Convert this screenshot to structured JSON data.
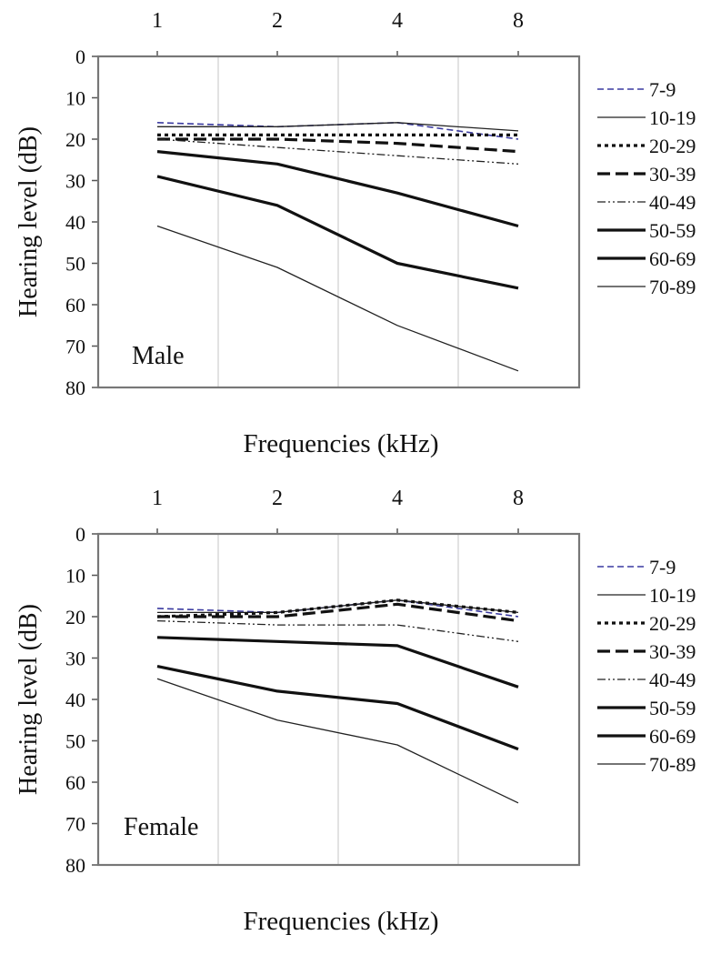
{
  "chart_data": [
    {
      "type": "line",
      "panel_label": "Male",
      "x_top_ticks": [
        "1",
        "2",
        "4",
        "8"
      ],
      "x": [
        1,
        2,
        4,
        8
      ],
      "xlabel": "Frequencies (kHz)",
      "ylabel": "Hearing level (dB)",
      "ylim": [
        0,
        80
      ],
      "y_inverted": true,
      "y_ticks": [
        "0",
        "10",
        "20",
        "30",
        "40",
        "50",
        "60",
        "70",
        "80"
      ],
      "grid": "vertical",
      "legend_position": "right",
      "series": [
        {
          "name": "7-9",
          "values": [
            16,
            17,
            16,
            20
          ],
          "color": "#3a3aa0",
          "style": "dashed-blue"
        },
        {
          "name": "10-19",
          "values": [
            17,
            17,
            16,
            18
          ],
          "color": "#222222",
          "style": "thin"
        },
        {
          "name": "20-29",
          "values": [
            19,
            19,
            19,
            19
          ],
          "color": "#111111",
          "style": "dotted"
        },
        {
          "name": "30-39",
          "values": [
            20,
            20,
            21,
            23
          ],
          "color": "#111111",
          "style": "dash-bold"
        },
        {
          "name": "40-49",
          "values": [
            20,
            22,
            24,
            26
          ],
          "color": "#222222",
          "style": "dash-dot-dot"
        },
        {
          "name": "50-59",
          "values": [
            23,
            26,
            33,
            41
          ],
          "color": "#111111",
          "style": "bold"
        },
        {
          "name": "60-69",
          "values": [
            29,
            36,
            50,
            56
          ],
          "color": "#111111",
          "style": "bold"
        },
        {
          "name": "70-89",
          "values": [
            41,
            51,
            65,
            76
          ],
          "color": "#222222",
          "style": "thin"
        }
      ]
    },
    {
      "type": "line",
      "panel_label": "Female",
      "x_top_ticks": [
        "1",
        "2",
        "4",
        "8"
      ],
      "x": [
        1,
        2,
        4,
        8
      ],
      "xlabel": "Frequencies (kHz)",
      "ylabel": "Hearing level (dB)",
      "ylim": [
        0,
        80
      ],
      "y_inverted": true,
      "y_ticks": [
        "0",
        "10",
        "20",
        "30",
        "40",
        "50",
        "60",
        "70",
        "80"
      ],
      "grid": "vertical",
      "legend_position": "right",
      "series": [
        {
          "name": "7-9",
          "values": [
            18,
            19,
            16,
            20
          ],
          "color": "#3a3aa0",
          "style": "dashed-blue"
        },
        {
          "name": "10-19",
          "values": [
            19,
            19,
            16,
            19
          ],
          "color": "#222222",
          "style": "thin"
        },
        {
          "name": "20-29",
          "values": [
            20,
            19,
            16,
            19
          ],
          "color": "#111111",
          "style": "dotted"
        },
        {
          "name": "30-39",
          "values": [
            20,
            20,
            17,
            21
          ],
          "color": "#111111",
          "style": "dash-bold"
        },
        {
          "name": "40-49",
          "values": [
            21,
            22,
            22,
            26
          ],
          "color": "#222222",
          "style": "dash-dot-dot"
        },
        {
          "name": "50-59",
          "values": [
            25,
            26,
            27,
            37
          ],
          "color": "#111111",
          "style": "bold"
        },
        {
          "name": "60-69",
          "values": [
            32,
            38,
            41,
            52
          ],
          "color": "#111111",
          "style": "bold"
        },
        {
          "name": "70-89",
          "values": [
            35,
            45,
            51,
            65
          ],
          "color": "#222222",
          "style": "thin"
        }
      ]
    }
  ]
}
